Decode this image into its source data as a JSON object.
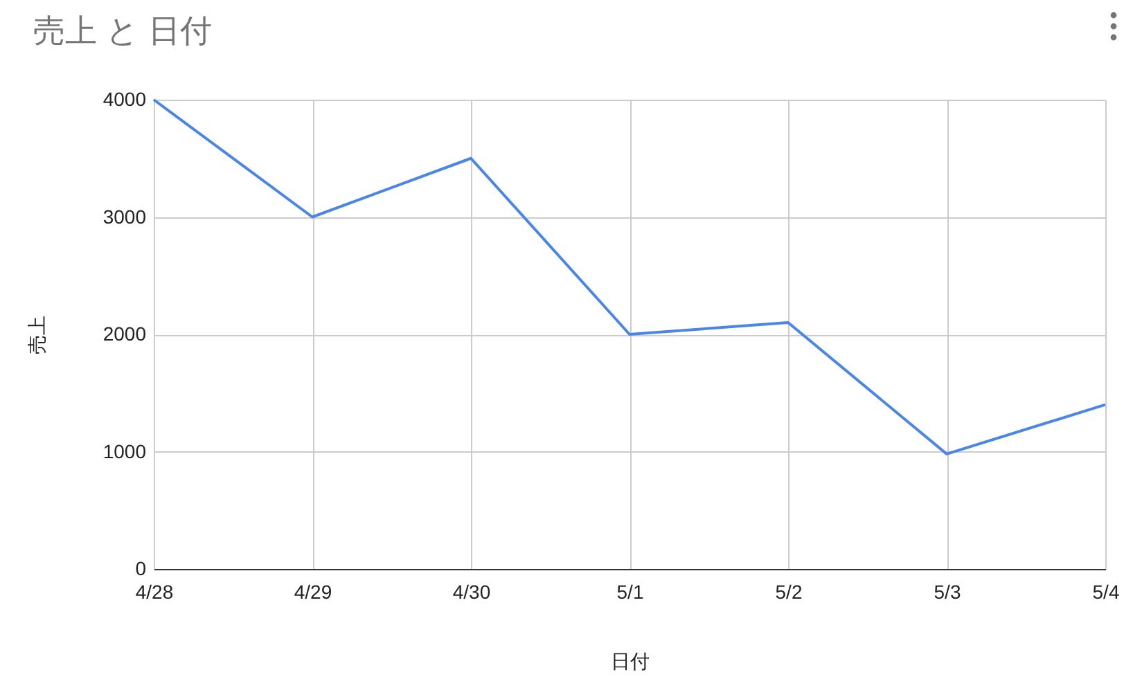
{
  "chart_data": {
    "type": "line",
    "title": "売上 と 日付",
    "xlabel": "日付",
    "ylabel": "売上",
    "categories": [
      "4/28",
      "4/29",
      "4/30",
      "5/1",
      "5/2",
      "5/3",
      "5/4"
    ],
    "series": [
      {
        "color": "#4a86e8",
        "values": [
          4000,
          3000,
          3500,
          2000,
          2100,
          980,
          1400
        ]
      }
    ],
    "ylim": [
      0,
      4000
    ],
    "yticks": [
      0,
      1000,
      2000,
      3000,
      4000
    ],
    "grid": true,
    "marker": "none",
    "line_style": "solid"
  }
}
